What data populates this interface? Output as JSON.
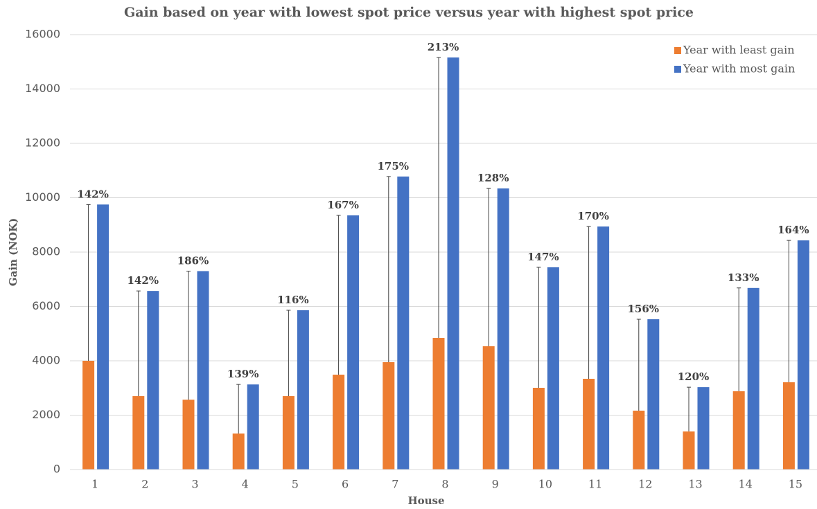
{
  "chart_data": {
    "type": "bar",
    "title": "Gain based on year with lowest spot price versus year with highest spot price",
    "xlabel": "House",
    "ylabel": "Gain (NOK)",
    "categories": [
      "1",
      "2",
      "3",
      "4",
      "5",
      "6",
      "7",
      "8",
      "9",
      "10",
      "11",
      "12",
      "13",
      "14",
      "15"
    ],
    "series": [
      {
        "name": "Year with least gain",
        "color": "#ed7d31",
        "values": [
          4000,
          2700,
          2570,
          1325,
          2700,
          3490,
          3950,
          4840,
          4535,
          3006,
          3338,
          2166,
          1400,
          2880,
          3210
        ]
      },
      {
        "name": "Year with most gain",
        "color": "#4472c4",
        "values": [
          9750,
          6570,
          7300,
          3130,
          5860,
          9350,
          10780,
          15160,
          10340,
          7440,
          8940,
          5530,
          3030,
          6680,
          8430
        ]
      }
    ],
    "percent_labels": [
      "142%",
      "142%",
      "186%",
      "139%",
      "116%",
      "167%",
      "175%",
      "213%",
      "128%",
      "147%",
      "170%",
      "156%",
      "120%",
      "133%",
      "164%"
    ],
    "ylim": [
      0,
      16000
    ],
    "yticks": [
      0,
      2000,
      4000,
      6000,
      8000,
      10000,
      12000,
      14000,
      16000
    ],
    "grid": true,
    "legend": "top-right"
  }
}
